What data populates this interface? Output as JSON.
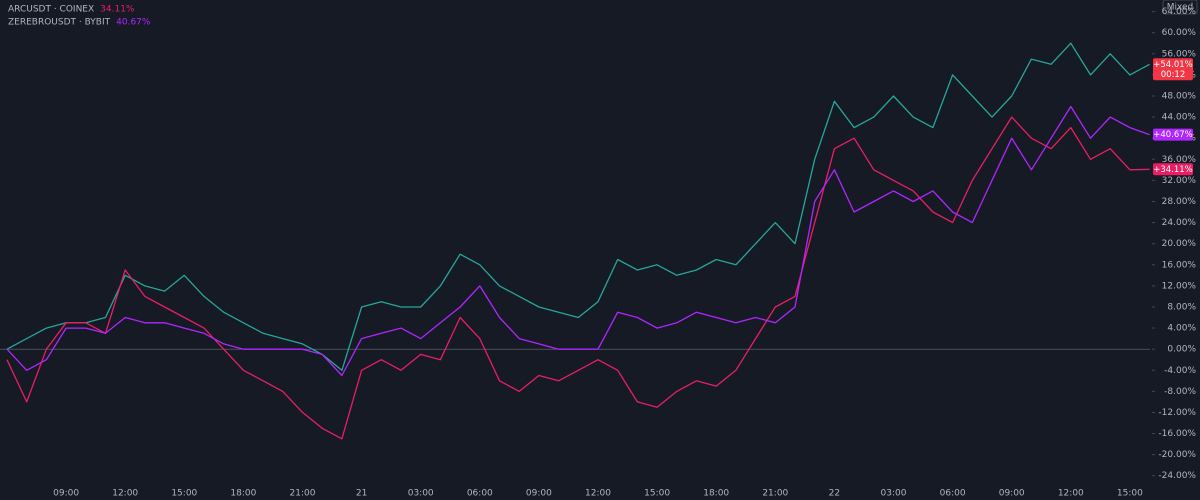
{
  "chart_data": {
    "type": "line",
    "ylog": false,
    "categories": [
      null,
      null,
      null,
      "09:00",
      null,
      null,
      "12:00",
      null,
      null,
      "15:00",
      null,
      null,
      "18:00",
      null,
      null,
      "21:00",
      null,
      null,
      "21",
      null,
      null,
      "03:00",
      null,
      null,
      "06:00",
      null,
      null,
      "09:00",
      null,
      null,
      "12:00",
      null,
      null,
      "15:00",
      null,
      null,
      "18:00",
      null,
      null,
      "21:00",
      null,
      null,
      "22",
      null,
      null,
      "03:00",
      null,
      null,
      "06:00",
      null,
      null,
      "09:00",
      null,
      null,
      "12:00",
      null,
      null,
      "15:00",
      null
    ],
    "series": [
      {
        "color": "#26a69a",
        "values": [
          0,
          2,
          4,
          5,
          5,
          6,
          14,
          12,
          11,
          14,
          10,
          7,
          5,
          3,
          2,
          1,
          -1,
          -4,
          8,
          9,
          8,
          8,
          12,
          18,
          16,
          12,
          10,
          8,
          7,
          6,
          9,
          17,
          15,
          16,
          14,
          15,
          17,
          16,
          20,
          24,
          20,
          36,
          47,
          42,
          44,
          48,
          44,
          42,
          52,
          48,
          44,
          48,
          55,
          54,
          58,
          52,
          56,
          52,
          54.01
        ]
      },
      {
        "name": "ARCUSDT · COINEX",
        "legend_label": "34.11%",
        "color": "#e91e63",
        "values": [
          -2,
          -10,
          0,
          5,
          5,
          3,
          15,
          10,
          8,
          6,
          4,
          0,
          -4,
          -6,
          -8,
          -12,
          -15,
          -17,
          -4,
          -2,
          -4,
          -1,
          -2,
          6,
          2,
          -6,
          -8,
          -5,
          -6,
          -4,
          -2,
          -4,
          -10,
          -11,
          -8,
          -6,
          -7,
          -4,
          2,
          8,
          10,
          24,
          38,
          40,
          34,
          32,
          30,
          26,
          24,
          32,
          38,
          44,
          40,
          38,
          42,
          36,
          38,
          34,
          34.11
        ]
      },
      {
        "name": "ZEREBROUSDT · BYBIT",
        "legend_label": "40.67%",
        "color": "#b026ff",
        "values": [
          0,
          -4,
          -2,
          4,
          4,
          3,
          6,
          5,
          5,
          4,
          3,
          1,
          0,
          0,
          0,
          0,
          -1,
          -5,
          2,
          3,
          4,
          2,
          5,
          8,
          12,
          6,
          2,
          1,
          0,
          0,
          0,
          7,
          6,
          4,
          5,
          7,
          6,
          5,
          6,
          5,
          8,
          28,
          34,
          26,
          28,
          30,
          28,
          30,
          26,
          24,
          32,
          40,
          34,
          40,
          46,
          40,
          44,
          42,
          40.67
        ]
      }
    ],
    "price_tags": [
      {
        "value": 54.01,
        "label": "+54.01%",
        "sub": "00:12",
        "color": "#f23645"
      },
      {
        "value": 40.67,
        "label": "+40.67%",
        "color": "#b026ff"
      },
      {
        "value": 34.11,
        "label": "+34.11%",
        "color": "#e91e63"
      }
    ],
    "scale_button": "Mixed",
    "ylim": [
      -28.6,
      66.2
    ],
    "yticks": [
      {
        "value": -24,
        "label": "-24.00%"
      },
      {
        "value": -20,
        "label": "-20.00%"
      },
      {
        "value": -16,
        "label": "-16.00%"
      },
      {
        "value": -12,
        "label": "-12.00%"
      },
      {
        "value": -8,
        "label": "-8.00%"
      },
      {
        "value": -4,
        "label": "-4.00%"
      },
      {
        "value": 0,
        "label": "0.00%"
      },
      {
        "value": 4,
        "label": "4.00%"
      },
      {
        "value": 8,
        "label": "8.00%"
      },
      {
        "value": 12,
        "label": "12.00%"
      },
      {
        "value": 16,
        "label": "16.00%"
      },
      {
        "value": 20,
        "label": "20.00%"
      },
      {
        "value": 24,
        "label": "24.00%"
      },
      {
        "value": 28,
        "label": "28.00%"
      },
      {
        "value": 32,
        "label": "32.00%"
      },
      {
        "value": 36,
        "label": "36.00%"
      },
      {
        "value": 40,
        "label": "40.00%"
      },
      {
        "value": 44,
        "label": "44.00%"
      },
      {
        "value": 48,
        "label": "48.00%"
      },
      {
        "value": 52,
        "label": "52.00%"
      },
      {
        "value": 56,
        "label": "56.00%"
      },
      {
        "value": 60,
        "label": "60.00%"
      },
      {
        "value": 64,
        "label": "64.00%"
      }
    ]
  }
}
